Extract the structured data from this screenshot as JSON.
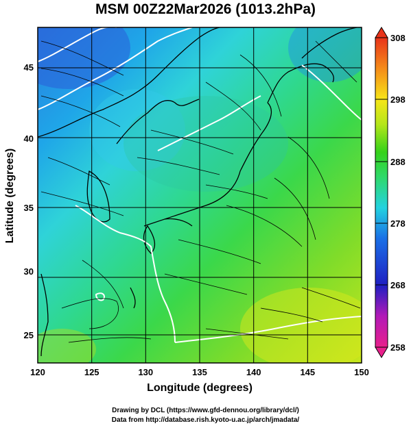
{
  "title": "MSM 00Z22Mar2026 (1013.2hPa)",
  "map": {
    "xlabel": "Longitude (degrees)",
    "ylabel": "Latitude  (degrees)",
    "lon_range": [
      120,
      150
    ],
    "lat_range": [
      22.5,
      47.5
    ],
    "x_ticks": [
      "120",
      "125",
      "130",
      "135",
      "140",
      "145",
      "150"
    ],
    "y_ticks": [
      "25",
      "30",
      "35",
      "40",
      "45"
    ],
    "field": "temperature (K) shaded with wind streamlines",
    "contour_color": "#ffffff"
  },
  "colorbar": {
    "labels": [
      "308",
      "298",
      "288",
      "278",
      "268",
      "258"
    ],
    "min": 258,
    "max": 308,
    "colors": [
      "#e8208c",
      "#b21ab7",
      "#1f1fc2",
      "#1a6fe6",
      "#23d2e0",
      "#2fd96a",
      "#35d21a",
      "#b5e61a",
      "#f7e618",
      "#f58c1a",
      "#e8331a"
    ]
  },
  "credits": {
    "line1": "Drawing by DCL (https://www.gfd-dennou.org/library/dcl/)",
    "line2": "Data from http://database.rish.kyoto-u.ac.jp/arch/jmadata/"
  }
}
